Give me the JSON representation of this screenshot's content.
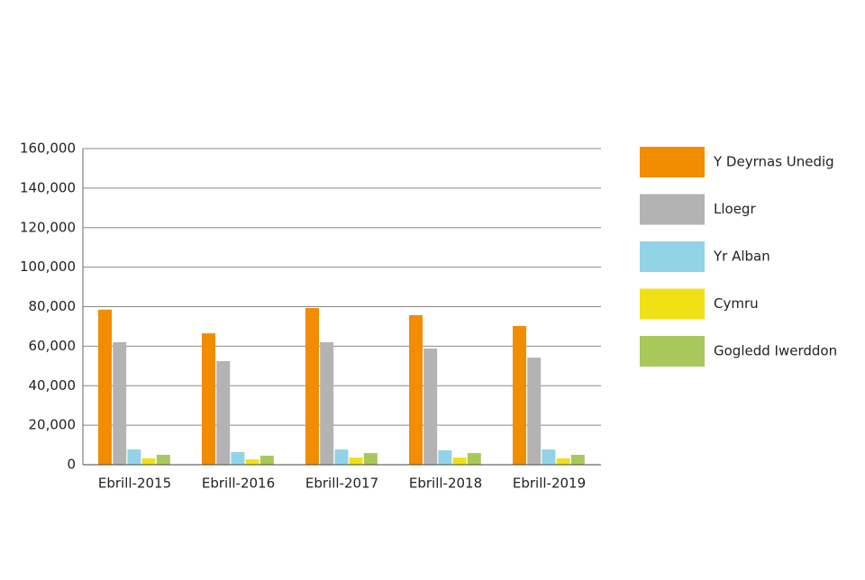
{
  "chart_data": {
    "type": "bar",
    "categories": [
      "Ebrill-2015",
      "Ebrill-2016",
      "Ebrill-2017",
      "Ebrill-2018",
      "Ebrill-2019"
    ],
    "series": [
      {
        "name": "Y Deyrnas Unedig",
        "color": "#f28c00",
        "values": [
          78500,
          66500,
          79300,
          75700,
          70200
        ]
      },
      {
        "name": "Lloegr",
        "color": "#b3b3b3",
        "values": [
          62000,
          52400,
          62000,
          58800,
          54200
        ]
      },
      {
        "name": "Yr Alban",
        "color": "#93d3e8",
        "values": [
          7700,
          6400,
          7700,
          7300,
          7700
        ]
      },
      {
        "name": "Cymru",
        "color": "#f0e016",
        "values": [
          3200,
          2700,
          3600,
          3600,
          3200
        ]
      },
      {
        "name": "Gogledd Iwerddon",
        "color": "#a8c85a",
        "values": [
          5000,
          4600,
          5900,
          5900,
          5000
        ]
      }
    ],
    "ylim": [
      0,
      160000
    ],
    "yticks": [
      0,
      {
        "value": 20000,
        "label": "20,000"
      },
      {
        "value": 40000,
        "label": "40,000"
      },
      {
        "value": 60000,
        "label": "60,000"
      },
      {
        "value": 80000,
        "label": "80,000"
      },
      {
        "value": 100000,
        "label": "100,000"
      },
      {
        "value": 120000,
        "label": "120,000"
      },
      {
        "value": 140000,
        "label": "140,000"
      },
      {
        "value": 160000,
        "label": "160,000"
      }
    ],
    "grid": true,
    "legend": "right"
  }
}
